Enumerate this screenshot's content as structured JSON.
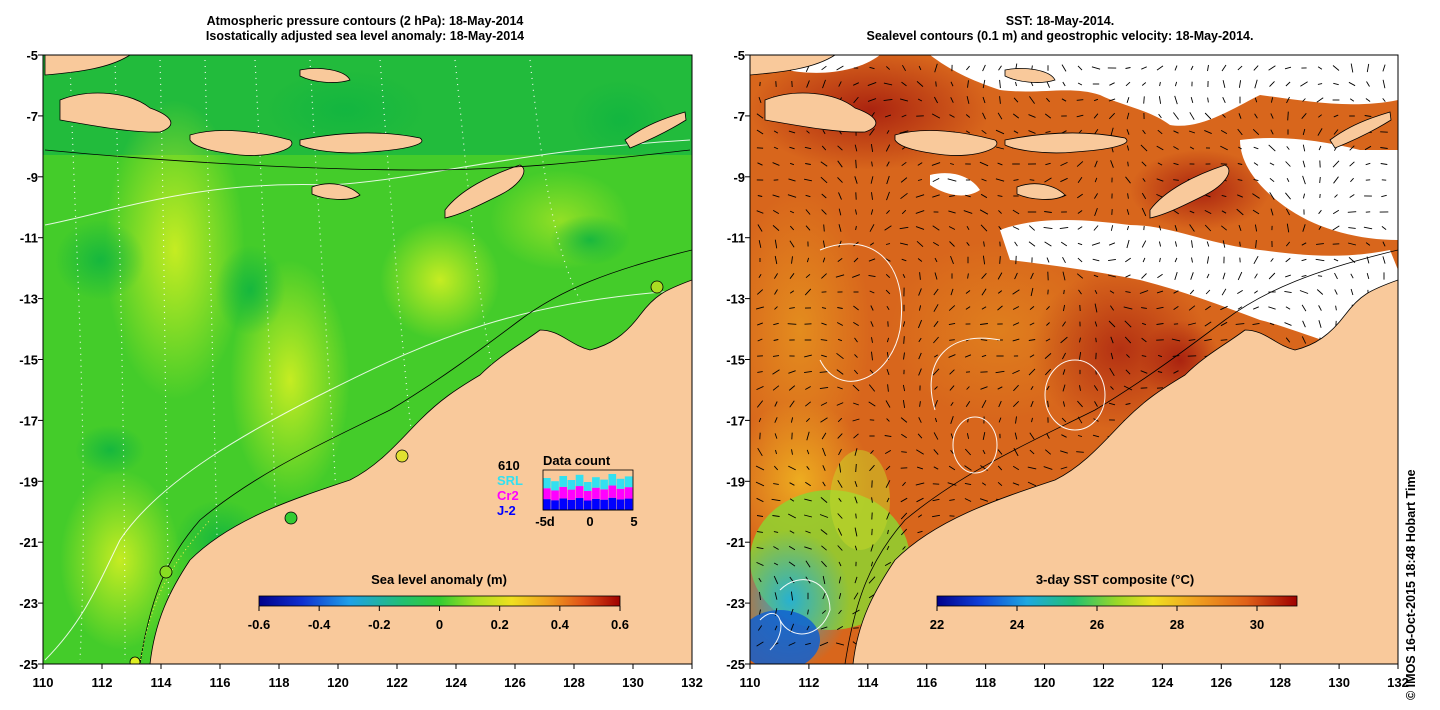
{
  "left_panel": {
    "title_line1": "Atmospheric pressure contours (2 hPa): 18-May-2014",
    "title_line2": "Isostatically adjusted sea level anomaly: 18-May-2014",
    "colorbar": {
      "title": "Sea level anomaly (m)",
      "ticks": [
        "-0.6",
        "-0.4",
        "-0.2",
        "0",
        "0.2",
        "0.4",
        "0.6"
      ],
      "range": [
        -0.6,
        0.6
      ]
    },
    "data_count": {
      "title": "Data count",
      "series": [
        {
          "name": "610",
          "color": "#000000"
        },
        {
          "name": "SRL",
          "color": "#33e0f0"
        },
        {
          "name": "Cr2",
          "color": "#ff00ff"
        },
        {
          "name": "J-2",
          "color": "#0000ff"
        }
      ],
      "axis_ticks": [
        "-5d",
        "0",
        "5"
      ]
    }
  },
  "right_panel": {
    "title_line1": "SST: 18-May-2014.",
    "title_line2": "Sealevel contours (0.1 m) and geostrophic velocity: 18-May-2014.",
    "colorbar": {
      "title": "3-day SST composite (°C)",
      "ticks": [
        "22",
        "24",
        "26",
        "28",
        "30"
      ],
      "range": [
        22,
        31
      ]
    }
  },
  "axes": {
    "x_ticks": [
      "110",
      "112",
      "114",
      "116",
      "118",
      "120",
      "122",
      "124",
      "126",
      "128",
      "130",
      "132"
    ],
    "y_ticks": [
      "-5",
      "-7",
      "-9",
      "-11",
      "-13",
      "-15",
      "-17",
      "-19",
      "-21",
      "-23",
      "-25"
    ],
    "lon_range": [
      110,
      132
    ],
    "lat_range": [
      -25,
      -5
    ]
  },
  "colors": {
    "land": "#f9c99b",
    "ocean_left_base": "#33cc33",
    "ocean_right_base": "#d9661a",
    "cloud": "#ffffff"
  },
  "credit": "© IMOS 16-Oct-2015 18:48 Hobart Time"
}
